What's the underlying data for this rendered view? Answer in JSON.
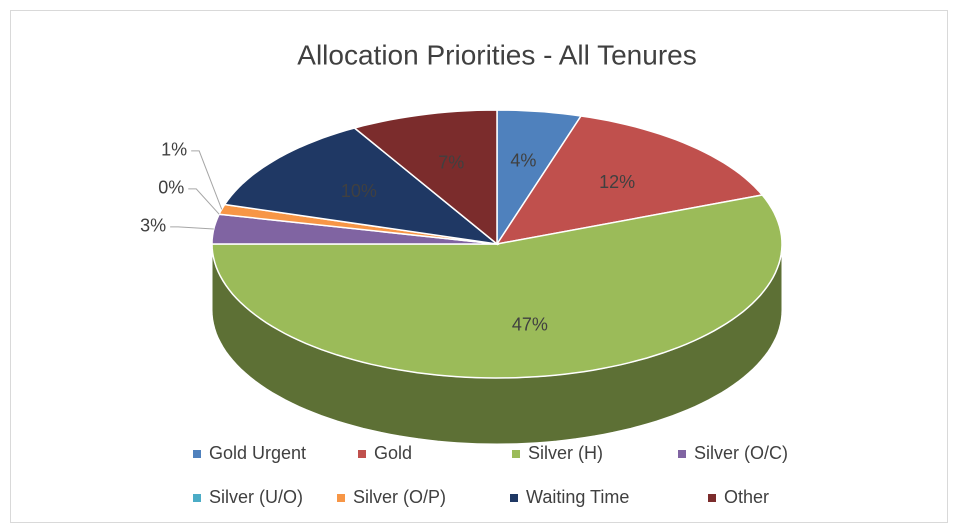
{
  "chart_data": {
    "type": "pie",
    "title": "Allocation Priorities - All Tenures",
    "categories": [
      "Gold Urgent",
      "Gold",
      "Silver (H)",
      "Silver (O/C)",
      "Silver (U/O)",
      "Silver (O/P)",
      "Waiting Time",
      "Other"
    ],
    "values": [
      4,
      12,
      47,
      3,
      0,
      1,
      10,
      7
    ],
    "value_labels": [
      "4%",
      "12%",
      "47%",
      "3%",
      "0%",
      "1%",
      "10%",
      "7%"
    ],
    "colors": [
      "#4f81bd",
      "#c0504d",
      "#9bbb59",
      "#8064a2",
      "#4bacc6",
      "#f79646",
      "#1f3864",
      "#7b2c2c"
    ],
    "legend": "bottom"
  }
}
